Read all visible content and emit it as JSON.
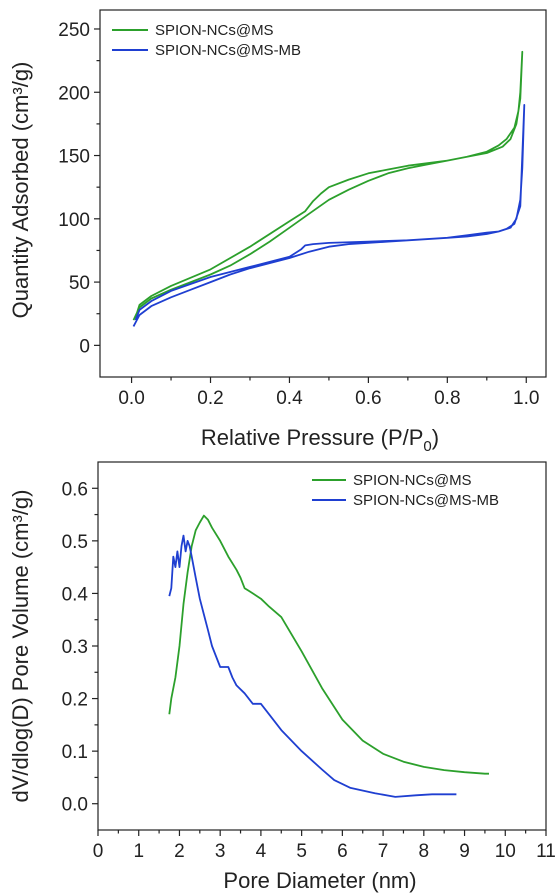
{
  "chart_data": [
    {
      "type": "line",
      "title": "",
      "xlabel": "Relative Pressure (P/P",
      "xlabel_sub": "0",
      "xlabel_close": ")",
      "ylabel": "Quantity Adsorbed (cm³/g)",
      "xlim": [
        -0.08,
        1.05
      ],
      "ylim": [
        -25,
        265
      ],
      "xticks": [
        0.0,
        0.2,
        0.4,
        0.6,
        0.8,
        1.0
      ],
      "xtick_labels": [
        "0.0",
        "0.2",
        "0.4",
        "0.6",
        "0.8",
        "1.0"
      ],
      "yticks": [
        0,
        50,
        100,
        150,
        200,
        250
      ],
      "ytick_labels": [
        "0",
        "50",
        "100",
        "150",
        "200",
        "250"
      ],
      "legend_position": "top-left",
      "grid": false,
      "series": [
        {
          "name": "SPION-NCs@MS",
          "color": "#2ca02c",
          "x": [
            0.005,
            0.02,
            0.05,
            0.1,
            0.15,
            0.2,
            0.25,
            0.3,
            0.35,
            0.4,
            0.45,
            0.5,
            0.55,
            0.6,
            0.65,
            0.7,
            0.75,
            0.8,
            0.85,
            0.9,
            0.93,
            0.95,
            0.97,
            0.98,
            0.985,
            0.99,
            0.99,
            0.985,
            0.975,
            0.96,
            0.94,
            0.9,
            0.85,
            0.8,
            0.75,
            0.7,
            0.65,
            0.6,
            0.55,
            0.5,
            0.48,
            0.46,
            0.44,
            0.4,
            0.3,
            0.2,
            0.1,
            0.05,
            0.02,
            0.01
          ],
          "y": [
            20,
            30,
            37,
            44,
            50,
            56,
            63,
            72,
            82,
            93,
            104,
            115,
            123,
            130,
            136,
            140,
            143,
            146,
            149,
            153,
            158,
            163,
            172,
            185,
            200,
            232,
            232,
            195,
            175,
            163,
            157,
            152,
            149,
            146,
            144,
            142,
            139,
            136,
            131,
            125,
            120,
            114,
            106,
            98,
            78,
            60,
            47,
            39,
            32,
            22
          ]
        },
        {
          "name": "SPION-NCs@MS-MB",
          "color": "#1f3fd1",
          "x": [
            0.005,
            0.02,
            0.05,
            0.1,
            0.15,
            0.2,
            0.25,
            0.3,
            0.35,
            0.4,
            0.45,
            0.5,
            0.55,
            0.6,
            0.65,
            0.7,
            0.75,
            0.8,
            0.85,
            0.9,
            0.93,
            0.96,
            0.975,
            0.985,
            0.99,
            0.995,
            0.99,
            0.985,
            0.97,
            0.95,
            0.93,
            0.9,
            0.85,
            0.8,
            0.7,
            0.6,
            0.5,
            0.46,
            0.44,
            0.43,
            0.4,
            0.3,
            0.2,
            0.1,
            0.05,
            0.02,
            0.01
          ],
          "y": [
            15,
            24,
            31,
            38,
            44,
            50,
            56,
            61,
            65,
            69,
            74,
            78,
            80,
            81,
            82,
            83,
            84,
            85,
            86,
            88,
            90,
            93,
            100,
            115,
            140,
            190,
            150,
            110,
            96,
            92,
            90,
            89,
            87,
            85,
            83,
            82,
            81,
            80,
            79,
            76,
            70,
            62,
            54,
            43,
            35,
            28,
            20
          ]
        }
      ]
    },
    {
      "type": "line",
      "title": "",
      "xlabel": "Pore Diameter (nm)",
      "ylabel": "dV/dlog(D) Pore Volume (cm³/g)",
      "xlim": [
        0,
        11
      ],
      "ylim": [
        -0.05,
        0.65
      ],
      "xticks": [
        0,
        1,
        2,
        3,
        4,
        5,
        6,
        7,
        8,
        9,
        10,
        11
      ],
      "xtick_labels": [
        "0",
        "1",
        "2",
        "3",
        "4",
        "5",
        "6",
        "7",
        "8",
        "9",
        "10",
        "11"
      ],
      "yticks": [
        0.0,
        0.1,
        0.2,
        0.3,
        0.4,
        0.5,
        0.6
      ],
      "ytick_labels": [
        "0.0",
        "0.1",
        "0.2",
        "0.3",
        "0.4",
        "0.5",
        "0.6"
      ],
      "legend_position": "top-right",
      "grid": false,
      "series": [
        {
          "name": "SPION-NCs@MS",
          "color": "#2ca02c",
          "x": [
            1.75,
            1.8,
            1.9,
            2.0,
            2.1,
            2.2,
            2.3,
            2.4,
            2.5,
            2.6,
            2.7,
            2.8,
            3.0,
            3.2,
            3.4,
            3.5,
            3.6,
            3.7,
            3.8,
            4.0,
            4.2,
            4.5,
            5.0,
            5.5,
            6.0,
            6.5,
            7.0,
            7.5,
            8.0,
            8.5,
            9.0,
            9.5,
            9.6
          ],
          "y": [
            0.17,
            0.2,
            0.24,
            0.3,
            0.38,
            0.44,
            0.49,
            0.52,
            0.535,
            0.548,
            0.54,
            0.525,
            0.5,
            0.47,
            0.445,
            0.43,
            0.41,
            0.405,
            0.4,
            0.39,
            0.375,
            0.355,
            0.29,
            0.22,
            0.16,
            0.12,
            0.095,
            0.08,
            0.07,
            0.064,
            0.06,
            0.057,
            0.057
          ]
        },
        {
          "name": "SPION-NCs@MS-MB",
          "color": "#1f3fd1",
          "x": [
            1.75,
            1.8,
            1.85,
            1.9,
            1.95,
            2.0,
            2.05,
            2.1,
            2.15,
            2.2,
            2.25,
            2.3,
            2.4,
            2.5,
            2.6,
            2.7,
            2.8,
            2.9,
            3.0,
            3.2,
            3.3,
            3.4,
            3.6,
            3.8,
            4.0,
            4.2,
            4.5,
            5.0,
            5.5,
            5.8,
            6.2,
            6.8,
            7.3,
            7.8,
            8.2,
            8.8
          ],
          "y": [
            0.395,
            0.41,
            0.47,
            0.45,
            0.48,
            0.45,
            0.49,
            0.51,
            0.48,
            0.5,
            0.49,
            0.47,
            0.43,
            0.39,
            0.36,
            0.33,
            0.3,
            0.28,
            0.26,
            0.26,
            0.24,
            0.225,
            0.21,
            0.19,
            0.19,
            0.17,
            0.14,
            0.1,
            0.065,
            0.045,
            0.03,
            0.02,
            0.013,
            0.016,
            0.018,
            0.018
          ]
        }
      ]
    }
  ]
}
